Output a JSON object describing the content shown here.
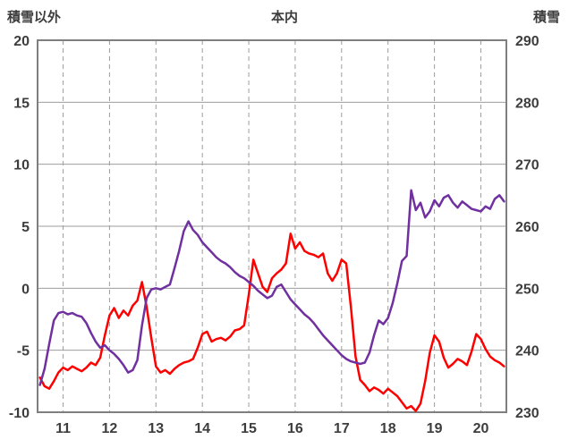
{
  "title": "本内",
  "style": {
    "grid_color": "#9d9d9d",
    "frame_color": "#7f7f7f",
    "text_color": "#3d3d3d",
    "background": "#ffffff"
  },
  "left_axis": {
    "label": "積雪以外",
    "min": -10,
    "max": 20,
    "ticks": [
      20,
      15,
      10,
      5,
      0,
      -5,
      -10
    ]
  },
  "right_axis": {
    "label": "積雪",
    "min": 230,
    "max": 290,
    "ticks": [
      290,
      280,
      270,
      260,
      250,
      240,
      230
    ]
  },
  "x_axis": {
    "min": 10.45,
    "max": 20.55,
    "ticks": [
      11,
      12,
      13,
      14,
      15,
      16,
      17,
      18,
      19,
      20
    ]
  },
  "chart_data": {
    "type": "line",
    "title": "本内",
    "xlabel": "",
    "legend": "none",
    "grid": "on",
    "series": [
      {
        "name": "積雪以外",
        "axis": "left",
        "color": "#FF0000",
        "points": [
          [
            10.5,
            -7.2
          ],
          [
            10.6,
            -7.9
          ],
          [
            10.7,
            -8.1
          ],
          [
            10.8,
            -7.5
          ],
          [
            10.9,
            -6.8
          ],
          [
            11.0,
            -6.4
          ],
          [
            11.1,
            -6.6
          ],
          [
            11.2,
            -6.3
          ],
          [
            11.3,
            -6.5
          ],
          [
            11.4,
            -6.7
          ],
          [
            11.5,
            -6.4
          ],
          [
            11.6,
            -6.0
          ],
          [
            11.7,
            -6.2
          ],
          [
            11.8,
            -5.6
          ],
          [
            11.9,
            -3.8
          ],
          [
            12.0,
            -2.2
          ],
          [
            12.1,
            -1.6
          ],
          [
            12.2,
            -2.4
          ],
          [
            12.3,
            -1.8
          ],
          [
            12.4,
            -2.2
          ],
          [
            12.5,
            -1.4
          ],
          [
            12.6,
            -1.0
          ],
          [
            12.7,
            0.5
          ],
          [
            12.8,
            -1.5
          ],
          [
            12.9,
            -4.0
          ],
          [
            13.0,
            -6.3
          ],
          [
            13.1,
            -6.8
          ],
          [
            13.2,
            -6.6
          ],
          [
            13.3,
            -6.9
          ],
          [
            13.4,
            -6.5
          ],
          [
            13.5,
            -6.2
          ],
          [
            13.6,
            -6.0
          ],
          [
            13.7,
            -5.9
          ],
          [
            13.8,
            -5.7
          ],
          [
            13.9,
            -4.8
          ],
          [
            14.0,
            -3.7
          ],
          [
            14.1,
            -3.5
          ],
          [
            14.2,
            -4.3
          ],
          [
            14.3,
            -4.1
          ],
          [
            14.4,
            -4.0
          ],
          [
            14.5,
            -4.2
          ],
          [
            14.6,
            -3.9
          ],
          [
            14.7,
            -3.4
          ],
          [
            14.8,
            -3.3
          ],
          [
            14.9,
            -3.0
          ],
          [
            15.0,
            -0.5
          ],
          [
            15.1,
            2.3
          ],
          [
            15.2,
            1.2
          ],
          [
            15.3,
            0.1
          ],
          [
            15.4,
            -0.3
          ],
          [
            15.5,
            0.8
          ],
          [
            15.6,
            1.2
          ],
          [
            15.7,
            1.5
          ],
          [
            15.8,
            2.0
          ],
          [
            15.9,
            4.4
          ],
          [
            16.0,
            3.2
          ],
          [
            16.1,
            3.7
          ],
          [
            16.2,
            3.0
          ],
          [
            16.3,
            2.8
          ],
          [
            16.4,
            2.7
          ],
          [
            16.5,
            2.5
          ],
          [
            16.6,
            2.8
          ],
          [
            16.7,
            1.2
          ],
          [
            16.8,
            0.6
          ],
          [
            16.9,
            1.2
          ],
          [
            17.0,
            2.3
          ],
          [
            17.1,
            2.0
          ],
          [
            17.2,
            -1.5
          ],
          [
            17.3,
            -5.5
          ],
          [
            17.4,
            -7.4
          ],
          [
            17.5,
            -7.8
          ],
          [
            17.6,
            -8.3
          ],
          [
            17.7,
            -8.0
          ],
          [
            17.8,
            -8.2
          ],
          [
            17.9,
            -8.5
          ],
          [
            18.0,
            -8.1
          ],
          [
            18.1,
            -8.4
          ],
          [
            18.2,
            -8.7
          ],
          [
            18.3,
            -9.2
          ],
          [
            18.4,
            -9.7
          ],
          [
            18.5,
            -9.5
          ],
          [
            18.6,
            -9.9
          ],
          [
            18.7,
            -9.3
          ],
          [
            18.8,
            -7.5
          ],
          [
            18.9,
            -5.2
          ],
          [
            19.0,
            -3.8
          ],
          [
            19.1,
            -4.3
          ],
          [
            19.2,
            -5.6
          ],
          [
            19.3,
            -6.4
          ],
          [
            19.4,
            -6.1
          ],
          [
            19.5,
            -5.7
          ],
          [
            19.6,
            -5.9
          ],
          [
            19.7,
            -6.2
          ],
          [
            19.8,
            -5.1
          ],
          [
            19.9,
            -3.7
          ],
          [
            20.0,
            -4.1
          ],
          [
            20.1,
            -4.9
          ],
          [
            20.2,
            -5.5
          ],
          [
            20.3,
            -5.8
          ],
          [
            20.4,
            -6.0
          ],
          [
            20.5,
            -6.3
          ]
        ]
      },
      {
        "name": "積雪",
        "axis": "right",
        "color": "#7030A0",
        "points": [
          [
            10.5,
            234.4
          ],
          [
            10.6,
            237.0
          ],
          [
            10.7,
            241.0
          ],
          [
            10.8,
            244.8
          ],
          [
            10.9,
            246.0
          ],
          [
            11.0,
            246.2
          ],
          [
            11.1,
            245.8
          ],
          [
            11.2,
            246.0
          ],
          [
            11.3,
            245.6
          ],
          [
            11.4,
            245.4
          ],
          [
            11.5,
            244.4
          ],
          [
            11.6,
            242.8
          ],
          [
            11.7,
            241.4
          ],
          [
            11.8,
            240.4
          ],
          [
            11.9,
            240.8
          ],
          [
            12.0,
            240.0
          ],
          [
            12.1,
            239.4
          ],
          [
            12.2,
            238.6
          ],
          [
            12.3,
            237.6
          ],
          [
            12.4,
            236.4
          ],
          [
            12.5,
            236.8
          ],
          [
            12.6,
            238.4
          ],
          [
            12.7,
            244.0
          ],
          [
            12.8,
            248.4
          ],
          [
            12.9,
            249.8
          ],
          [
            13.0,
            250.0
          ],
          [
            13.1,
            249.8
          ],
          [
            13.2,
            250.2
          ],
          [
            13.3,
            250.6
          ],
          [
            13.4,
            253.2
          ],
          [
            13.5,
            256.0
          ],
          [
            13.6,
            259.2
          ],
          [
            13.7,
            260.8
          ],
          [
            13.8,
            259.4
          ],
          [
            13.9,
            258.6
          ],
          [
            14.0,
            257.4
          ],
          [
            14.1,
            256.6
          ],
          [
            14.2,
            255.8
          ],
          [
            14.3,
            255.0
          ],
          [
            14.4,
            254.4
          ],
          [
            14.5,
            254.0
          ],
          [
            14.6,
            253.4
          ],
          [
            14.7,
            252.6
          ],
          [
            14.8,
            252.0
          ],
          [
            14.9,
            251.6
          ],
          [
            15.0,
            251.0
          ],
          [
            15.1,
            250.4
          ],
          [
            15.2,
            249.6
          ],
          [
            15.3,
            249.0
          ],
          [
            15.4,
            248.4
          ],
          [
            15.5,
            248.8
          ],
          [
            15.6,
            250.2
          ],
          [
            15.7,
            250.6
          ],
          [
            15.8,
            249.4
          ],
          [
            15.9,
            248.2
          ],
          [
            16.0,
            247.4
          ],
          [
            16.1,
            246.6
          ],
          [
            16.2,
            245.8
          ],
          [
            16.3,
            245.2
          ],
          [
            16.4,
            244.4
          ],
          [
            16.5,
            243.4
          ],
          [
            16.6,
            242.4
          ],
          [
            16.7,
            241.6
          ],
          [
            16.8,
            240.8
          ],
          [
            16.9,
            240.0
          ],
          [
            17.0,
            239.2
          ],
          [
            17.1,
            238.6
          ],
          [
            17.2,
            238.2
          ],
          [
            17.3,
            238.0
          ],
          [
            17.4,
            237.8
          ],
          [
            17.5,
            238.0
          ],
          [
            17.6,
            239.6
          ],
          [
            17.7,
            242.4
          ],
          [
            17.8,
            244.8
          ],
          [
            17.9,
            244.2
          ],
          [
            18.0,
            245.2
          ],
          [
            18.1,
            247.6
          ],
          [
            18.2,
            250.8
          ],
          [
            18.3,
            254.4
          ],
          [
            18.4,
            255.2
          ],
          [
            18.5,
            265.8
          ],
          [
            18.6,
            262.6
          ],
          [
            18.7,
            263.8
          ],
          [
            18.8,
            261.4
          ],
          [
            18.9,
            262.4
          ],
          [
            19.0,
            264.2
          ],
          [
            19.1,
            263.2
          ],
          [
            19.2,
            264.6
          ],
          [
            19.3,
            265.0
          ],
          [
            19.4,
            263.8
          ],
          [
            19.5,
            263.0
          ],
          [
            19.6,
            264.0
          ],
          [
            19.7,
            263.4
          ],
          [
            19.8,
            262.8
          ],
          [
            19.9,
            262.6
          ],
          [
            20.0,
            262.4
          ],
          [
            20.1,
            263.2
          ],
          [
            20.2,
            262.8
          ],
          [
            20.3,
            264.4
          ],
          [
            20.4,
            265.0
          ],
          [
            20.5,
            264.0
          ]
        ]
      }
    ]
  }
}
